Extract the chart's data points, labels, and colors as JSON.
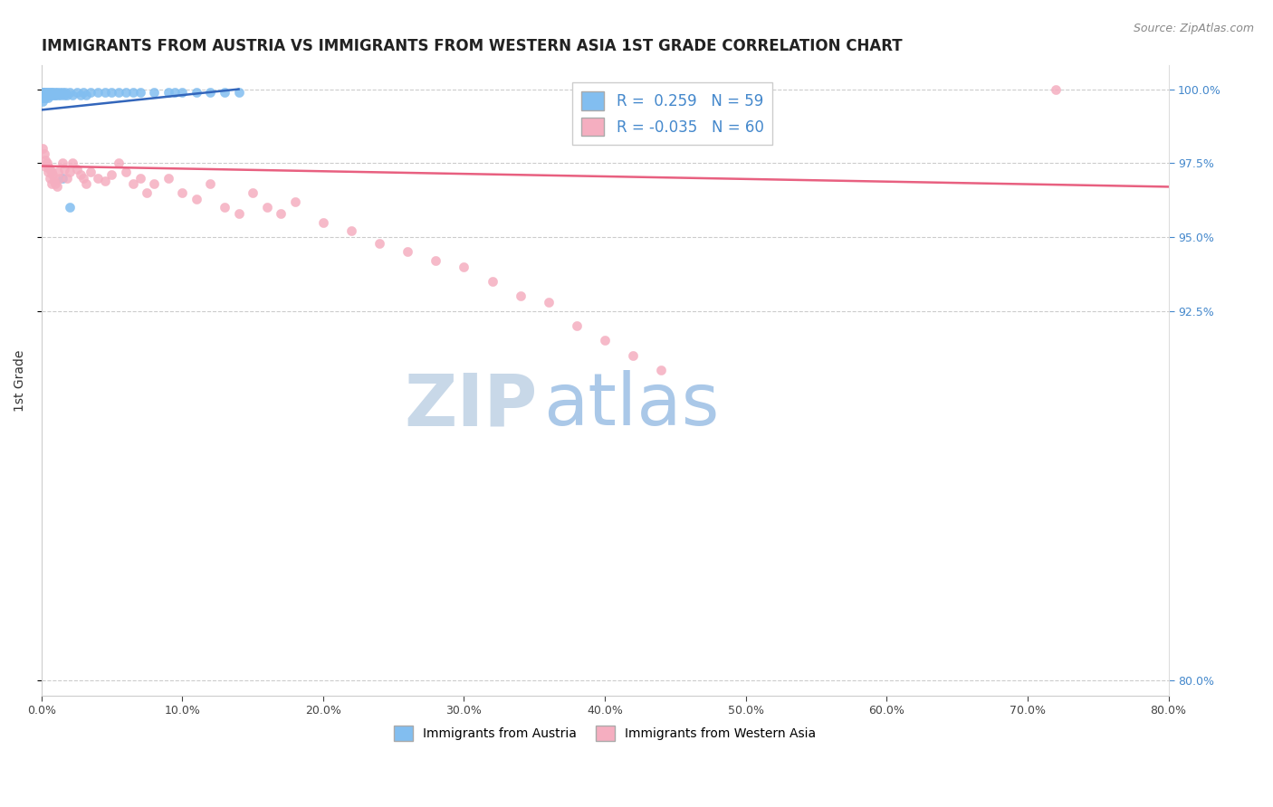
{
  "title": "IMMIGRANTS FROM AUSTRIA VS IMMIGRANTS FROM WESTERN ASIA 1ST GRADE CORRELATION CHART",
  "source": "Source: ZipAtlas.com",
  "ylabel": "1st Grade",
  "watermark_zip": "ZIP",
  "watermark_atlas": "atlas",
  "legend_blue_r": " 0.259",
  "legend_blue_n": "59",
  "legend_pink_r": "-0.035",
  "legend_pink_n": "60",
  "blue_color": "#82bef0",
  "pink_color": "#f5aec0",
  "blue_line_color": "#3366bb",
  "pink_line_color": "#e86080",
  "xmin": 0.0,
  "xmax": 0.8,
  "ymin": 0.795,
  "ymax": 1.008,
  "yticks": [
    1.0,
    0.975,
    0.95,
    0.925,
    0.8
  ],
  "ytick_labels": [
    "100.0%",
    "97.5%",
    "95.0%",
    "92.5%",
    "80.0%"
  ],
  "xtick_labels": [
    "0.0%",
    "10.0%",
    "20.0%",
    "30.0%",
    "40.0%",
    "50.0%",
    "60.0%",
    "70.0%",
    "80.0%"
  ],
  "xtick_values": [
    0.0,
    0.1,
    0.2,
    0.3,
    0.4,
    0.5,
    0.6,
    0.7,
    0.8
  ],
  "grid_color": "#cccccc",
  "background_color": "#ffffff",
  "title_fontsize": 12,
  "tick_fontsize": 9,
  "watermark_zip_color": "#c8d8e8",
  "watermark_atlas_color": "#aac8e8",
  "blue_scatter_x": [
    0.001,
    0.001,
    0.001,
    0.001,
    0.001,
    0.001,
    0.001,
    0.002,
    0.002,
    0.002,
    0.002,
    0.003,
    0.003,
    0.003,
    0.004,
    0.004,
    0.005,
    0.005,
    0.005,
    0.006,
    0.006,
    0.007,
    0.007,
    0.008,
    0.009,
    0.01,
    0.01,
    0.011,
    0.012,
    0.013,
    0.014,
    0.015,
    0.016,
    0.017,
    0.018,
    0.02,
    0.022,
    0.025,
    0.028,
    0.03,
    0.032,
    0.035,
    0.04,
    0.045,
    0.05,
    0.055,
    0.06,
    0.065,
    0.07,
    0.08,
    0.09,
    0.095,
    0.1,
    0.11,
    0.12,
    0.13,
    0.14,
    0.02,
    0.015
  ],
  "blue_scatter_y": [
    0.999,
    0.999,
    0.998,
    0.998,
    0.997,
    0.997,
    0.996,
    0.999,
    0.998,
    0.998,
    0.997,
    0.999,
    0.998,
    0.997,
    0.999,
    0.998,
    0.999,
    0.998,
    0.997,
    0.999,
    0.998,
    0.999,
    0.998,
    0.999,
    0.998,
    0.999,
    0.998,
    0.999,
    0.998,
    0.999,
    0.998,
    0.999,
    0.998,
    0.999,
    0.998,
    0.999,
    0.998,
    0.999,
    0.998,
    0.999,
    0.998,
    0.999,
    0.999,
    0.999,
    0.999,
    0.999,
    0.999,
    0.999,
    0.999,
    0.999,
    0.999,
    0.999,
    0.999,
    0.999,
    0.999,
    0.999,
    0.999,
    0.96,
    0.97
  ],
  "pink_scatter_x": [
    0.001,
    0.002,
    0.003,
    0.003,
    0.004,
    0.005,
    0.005,
    0.006,
    0.006,
    0.007,
    0.007,
    0.008,
    0.009,
    0.01,
    0.011,
    0.012,
    0.013,
    0.015,
    0.016,
    0.018,
    0.02,
    0.022,
    0.025,
    0.028,
    0.03,
    0.032,
    0.035,
    0.04,
    0.045,
    0.05,
    0.055,
    0.06,
    0.065,
    0.07,
    0.075,
    0.08,
    0.09,
    0.1,
    0.11,
    0.12,
    0.13,
    0.14,
    0.15,
    0.16,
    0.17,
    0.18,
    0.2,
    0.22,
    0.24,
    0.26,
    0.28,
    0.3,
    0.32,
    0.34,
    0.36,
    0.38,
    0.4,
    0.42,
    0.44,
    0.72
  ],
  "pink_scatter_y": [
    0.98,
    0.978,
    0.976,
    0.974,
    0.975,
    0.974,
    0.972,
    0.973,
    0.97,
    0.972,
    0.968,
    0.971,
    0.969,
    0.968,
    0.967,
    0.972,
    0.97,
    0.975,
    0.973,
    0.97,
    0.972,
    0.975,
    0.973,
    0.971,
    0.97,
    0.968,
    0.972,
    0.97,
    0.969,
    0.971,
    0.975,
    0.972,
    0.968,
    0.97,
    0.965,
    0.968,
    0.97,
    0.965,
    0.963,
    0.968,
    0.96,
    0.958,
    0.965,
    0.96,
    0.958,
    0.962,
    0.955,
    0.952,
    0.948,
    0.945,
    0.942,
    0.94,
    0.935,
    0.93,
    0.928,
    0.92,
    0.915,
    0.91,
    0.905,
    1.0
  ],
  "blue_line_x": [
    0.0,
    0.14
  ],
  "blue_line_y": [
    0.993,
    1.0
  ],
  "pink_line_x": [
    0.0,
    0.8
  ],
  "pink_line_y": [
    0.974,
    0.967
  ]
}
